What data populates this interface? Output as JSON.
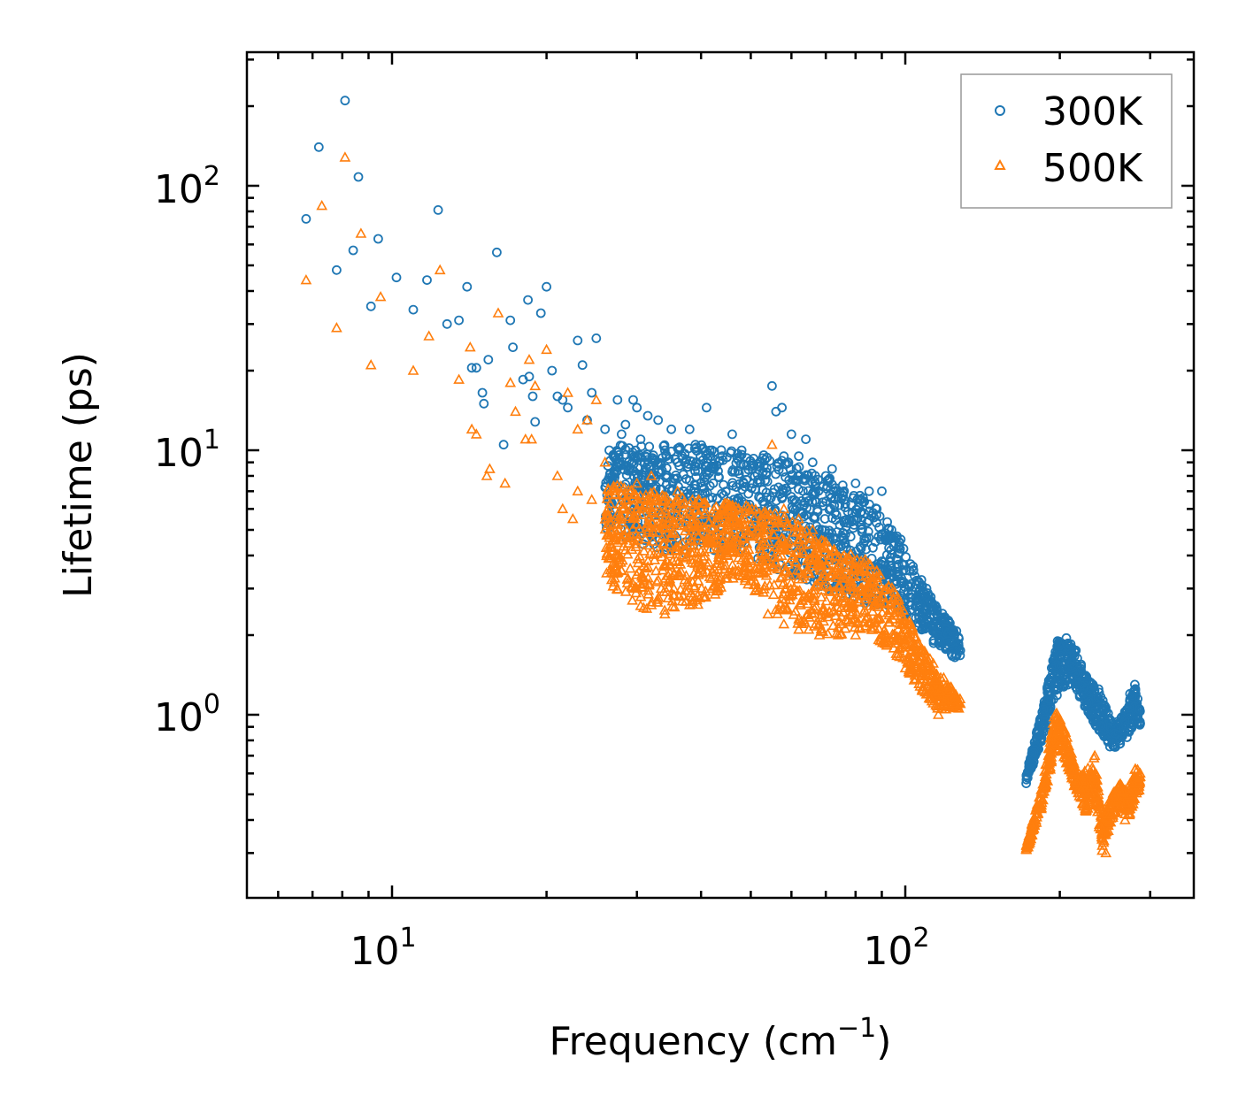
{
  "chart_data": {
    "type": "scatter",
    "title": "",
    "xlabel": "Frequency (cm",
    "xlabel_sup": "−1",
    "xlabel_end": ")",
    "ylabel": "Lifetime (ps)",
    "xscale": "log",
    "yscale": "log",
    "xlim": [
      5.5,
      350
    ],
    "ylim": [
      0.21,
      320
    ],
    "x_ticks": [
      {
        "value": 10,
        "base": "10",
        "exp": "1"
      },
      {
        "value": 100,
        "base": "10",
        "exp": "2"
      }
    ],
    "y_ticks": [
      {
        "value": 1,
        "base": "10",
        "exp": "0"
      },
      {
        "value": 10,
        "base": "10",
        "exp": "1"
      },
      {
        "value": 100,
        "base": "10",
        "exp": "2"
      }
    ],
    "legend_position": "top-right",
    "series": [
      {
        "name": "300K",
        "marker": "circle",
        "color": "#1f77b4",
        "points": [
          [
            6.8,
            75
          ],
          [
            7.2,
            140
          ],
          [
            7.8,
            48
          ],
          [
            8.1,
            210
          ],
          [
            8.6,
            108
          ],
          [
            9.1,
            35
          ],
          [
            9.4,
            63
          ],
          [
            11,
            34
          ],
          [
            11.7,
            44
          ],
          [
            12.3,
            81
          ],
          [
            13.5,
            31
          ],
          [
            14,
            41.5
          ],
          [
            14.3,
            20.5
          ],
          [
            14.6,
            20.5
          ],
          [
            15,
            16.5
          ],
          [
            15.1,
            15
          ],
          [
            16,
            56
          ],
          [
            16.5,
            10.5
          ],
          [
            17,
            31
          ],
          [
            17.2,
            24.5
          ],
          [
            18.4,
            37
          ],
          [
            18.5,
            19
          ],
          [
            18.8,
            16
          ],
          [
            19,
            12.8
          ],
          [
            19.5,
            33
          ],
          [
            20,
            41.5
          ],
          [
            20.5,
            20
          ],
          [
            21,
            16
          ],
          [
            22,
            14.5
          ],
          [
            23,
            26
          ],
          [
            23.5,
            21
          ],
          [
            25,
            26.5
          ],
          [
            24,
            13
          ],
          [
            26,
            12
          ],
          [
            27.5,
            15.5
          ],
          [
            28,
            11.5
          ],
          [
            29.5,
            15.5
          ],
          [
            30,
            14.5
          ],
          [
            31.5,
            13.5
          ],
          [
            33,
            13
          ],
          [
            35,
            12
          ],
          [
            38,
            12
          ],
          [
            41,
            14.5
          ],
          [
            46,
            11.5
          ],
          [
            55,
            17.5
          ],
          [
            56,
            14
          ],
          [
            57.5,
            14.5
          ],
          [
            60,
            11.5
          ],
          [
            64,
            11
          ],
          [
            72,
            8.5
          ],
          [
            80,
            7.5
          ],
          [
            85,
            7
          ],
          [
            90,
            7
          ],
          [
            8.4,
            57
          ],
          [
            10.2,
            45
          ],
          [
            12.8,
            30
          ],
          [
            15.4,
            22
          ],
          [
            18,
            18.5
          ],
          [
            21.5,
            15.5
          ],
          [
            24.5,
            16.5
          ],
          [
            26.5,
            10
          ],
          [
            27,
            9.5
          ],
          [
            28.5,
            12.5
          ],
          [
            30.5,
            11
          ],
          [
            34,
            10
          ],
          [
            36,
            9
          ],
          [
            39,
            10.5
          ],
          [
            42,
            10
          ],
          [
            44,
            9.5
          ],
          [
            48,
            10
          ],
          [
            52,
            9
          ],
          [
            58,
            9.5
          ],
          [
            62,
            9.5
          ],
          [
            66,
            9
          ],
          [
            70,
            8
          ],
          [
            76,
            7
          ],
          [
            82,
            6.5
          ],
          [
            88,
            6
          ],
          [
            94,
            5
          ],
          [
            98,
            4.6
          ],
          [
            102,
            3.5
          ],
          [
            106,
            3.2
          ],
          [
            110,
            3
          ],
          [
            115,
            2.5
          ],
          [
            120,
            2.1
          ],
          [
            124,
            1.9
          ],
          [
            128,
            1.75
          ],
          [
            172,
            0.55
          ],
          [
            175,
            0.62
          ],
          [
            178,
            0.72
          ],
          [
            182,
            0.85
          ],
          [
            186,
            1.05
          ],
          [
            190,
            1.3
          ],
          [
            194,
            1.6
          ],
          [
            198,
            1.9
          ],
          [
            202,
            1.85
          ],
          [
            206,
            1.95
          ],
          [
            210,
            1.85
          ],
          [
            215,
            1.75
          ],
          [
            220,
            1.55
          ],
          [
            226,
            1.35
          ],
          [
            232,
            1.3
          ],
          [
            238,
            1.25
          ],
          [
            244,
            1.05
          ],
          [
            250,
            0.95
          ],
          [
            256,
            0.85
          ],
          [
            262,
            0.8
          ],
          [
            268,
            0.95
          ],
          [
            274,
            1.2
          ],
          [
            280,
            1.3
          ],
          [
            286,
            1.05
          ]
        ]
      },
      {
        "name": "500K",
        "marker": "triangle",
        "color": "#ff7f0e",
        "points": [
          [
            6.8,
            44
          ],
          [
            7.3,
            84
          ],
          [
            7.8,
            29
          ],
          [
            8.1,
            128
          ],
          [
            8.7,
            66
          ],
          [
            9.1,
            21
          ],
          [
            9.5,
            38
          ],
          [
            11,
            20
          ],
          [
            11.8,
            27
          ],
          [
            12.4,
            48
          ],
          [
            13.5,
            18.5
          ],
          [
            14.2,
            24.5
          ],
          [
            14.3,
            12
          ],
          [
            14.6,
            11.5
          ],
          [
            15.3,
            8
          ],
          [
            15.5,
            8.5
          ],
          [
            16.1,
            33
          ],
          [
            16.6,
            7.5
          ],
          [
            17,
            18
          ],
          [
            17.4,
            14
          ],
          [
            18.2,
            11
          ],
          [
            18.5,
            22
          ],
          [
            18.7,
            11
          ],
          [
            19,
            17.5
          ],
          [
            20,
            24
          ],
          [
            21,
            8
          ],
          [
            21.5,
            6
          ],
          [
            22,
            16.5
          ],
          [
            22.5,
            5.5
          ],
          [
            23,
            12
          ],
          [
            24,
            13
          ],
          [
            25,
            15.5
          ],
          [
            26,
            9
          ],
          [
            27,
            7
          ],
          [
            28,
            5.5
          ],
          [
            30,
            7.5
          ],
          [
            32,
            8
          ],
          [
            34,
            6.5
          ],
          [
            36,
            7
          ],
          [
            40,
            6
          ],
          [
            44,
            6
          ],
          [
            48,
            5.5
          ],
          [
            52,
            5
          ],
          [
            55,
            10.5
          ],
          [
            58,
            6
          ],
          [
            62,
            5.5
          ],
          [
            66,
            5
          ],
          [
            70,
            4.5
          ],
          [
            76,
            4
          ],
          [
            82,
            3.8
          ],
          [
            88,
            3.5
          ],
          [
            23,
            7
          ],
          [
            24.5,
            6.5
          ],
          [
            26.5,
            4
          ],
          [
            28,
            3.5
          ],
          [
            30,
            3
          ],
          [
            32,
            2.6
          ],
          [
            34,
            2.4
          ],
          [
            38,
            2.6
          ],
          [
            42,
            3
          ],
          [
            46,
            3.4
          ],
          [
            50,
            3.2
          ],
          [
            54,
            2.4
          ],
          [
            58,
            2.2
          ],
          [
            62,
            2.1
          ],
          [
            68,
            2
          ],
          [
            74,
            2
          ],
          [
            80,
            2
          ],
          [
            86,
            2.1
          ],
          [
            92,
            1.9
          ],
          [
            96,
            1.7
          ],
          [
            100,
            1.5
          ],
          [
            104,
            1.35
          ],
          [
            108,
            1.25
          ],
          [
            112,
            1.15
          ],
          [
            116,
            1
          ],
          [
            120,
            1.05
          ],
          [
            124,
            1.1
          ],
          [
            128,
            1.1
          ],
          [
            172,
            0.31
          ],
          [
            176,
            0.35
          ],
          [
            180,
            0.42
          ],
          [
            184,
            0.52
          ],
          [
            188,
            0.65
          ],
          [
            192,
            0.82
          ],
          [
            196,
            1
          ],
          [
            200,
            0.95
          ],
          [
            204,
            0.85
          ],
          [
            208,
            0.75
          ],
          [
            212,
            0.62
          ],
          [
            216,
            0.55
          ],
          [
            220,
            0.52
          ],
          [
            225,
            0.45
          ],
          [
            230,
            0.6
          ],
          [
            234,
            0.7
          ],
          [
            238,
            0.45
          ],
          [
            242,
            0.32
          ],
          [
            246,
            0.3
          ],
          [
            250,
            0.42
          ],
          [
            256,
            0.5
          ],
          [
            262,
            0.52
          ],
          [
            268,
            0.4
          ],
          [
            274,
            0.55
          ],
          [
            280,
            0.62
          ],
          [
            286,
            0.58
          ]
        ]
      }
    ]
  }
}
